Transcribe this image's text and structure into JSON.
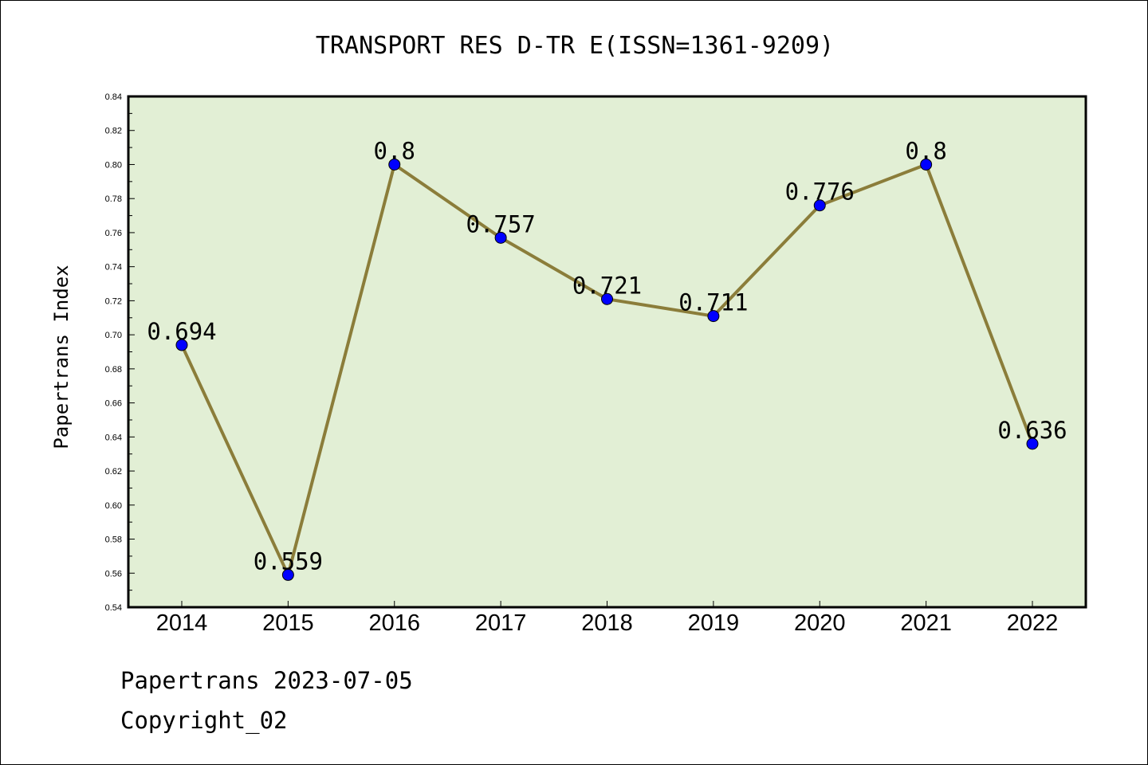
{
  "chart_data": {
    "type": "line",
    "title": "TRANSPORT RES D-TR E(ISSN=1361-9209)",
    "ylabel": "Papertrans Index",
    "xlabel": "",
    "categories": [
      "2014",
      "2015",
      "2016",
      "2017",
      "2018",
      "2019",
      "2020",
      "2021",
      "2022"
    ],
    "series": [
      {
        "values": [
          0.694,
          0.559,
          0.8,
          0.757,
          0.721,
          0.711,
          0.776,
          0.8,
          0.636
        ],
        "labels": [
          "0.694",
          "0.559",
          "0.8",
          "0.757",
          "0.721",
          "0.711",
          "0.776",
          "0.8",
          "0.636"
        ]
      }
    ],
    "ylim": [
      0.54,
      0.84
    ],
    "yticks": [
      "0.54",
      "0.56",
      "0.58",
      "0.60",
      "0.62",
      "0.64",
      "0.66",
      "0.68",
      "0.70",
      "0.72",
      "0.74",
      "0.76",
      "0.78",
      "0.80",
      "0.82",
      "0.84"
    ],
    "grid": false,
    "colors": {
      "plot_background": "#e2efd5",
      "line": "#8b7d3a",
      "marker": "#0000ff"
    }
  },
  "footer": {
    "line1": "Papertrans 2023-07-05",
    "line2": "Copyright_02"
  }
}
